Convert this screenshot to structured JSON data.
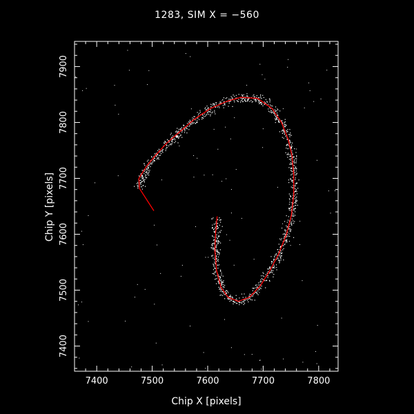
{
  "chart_data": {
    "type": "scatter",
    "title": "1283, SIM X = −560",
    "xlabel": "Chip X [pixels]",
    "ylabel": "Chip Y [pixels]",
    "xlim": [
      7360,
      7835
    ],
    "ylim": [
      7355,
      7945
    ],
    "xticks": [
      7400,
      7500,
      7600,
      7700,
      7800
    ],
    "yticks": [
      7400,
      7500,
      7600,
      7700,
      7800,
      7900
    ],
    "grid": false,
    "point_color": "#ffffff",
    "line_color": "#ff0000",
    "series": [
      {
        "type": "line",
        "x": [
          7503,
          7477,
          7476,
          7490,
          7505,
          7525,
          7548,
          7575,
          7605,
          7635,
          7660,
          7690,
          7716,
          7733,
          7745,
          7752,
          7755,
          7755,
          7751,
          7742,
          7728,
          7712,
          7695,
          7675,
          7655,
          7637,
          7624,
          7616,
          7613,
          7614,
          7617
        ],
        "y": [
          7642,
          7682,
          7700,
          7722,
          7740,
          7762,
          7782,
          7805,
          7825,
          7838,
          7845,
          7843,
          7825,
          7800,
          7770,
          7740,
          7705,
          7670,
          7635,
          7600,
          7565,
          7535,
          7508,
          7487,
          7480,
          7487,
          7505,
          7535,
          7570,
          7600,
          7632
        ]
      },
      {
        "type": "scatter",
        "trace_x": [
          7476,
          7490,
          7505,
          7525,
          7548,
          7575,
          7605,
          7635,
          7660,
          7690,
          7716,
          7733,
          7745,
          7752,
          7755,
          7755,
          7751,
          7742,
          7728,
          7712,
          7695,
          7675,
          7655,
          7637,
          7624,
          7616,
          7613,
          7614,
          7617
        ],
        "trace_y": [
          7682,
          7722,
          7740,
          7762,
          7782,
          7805,
          7825,
          7838,
          7845,
          7843,
          7825,
          7800,
          7770,
          7740,
          7705,
          7670,
          7635,
          7600,
          7565,
          7535,
          7508,
          7487,
          7480,
          7487,
          7505,
          7535,
          7570,
          7600,
          7632
        ],
        "n_points": 1400,
        "spread": 6,
        "n_background": 110
      }
    ]
  }
}
